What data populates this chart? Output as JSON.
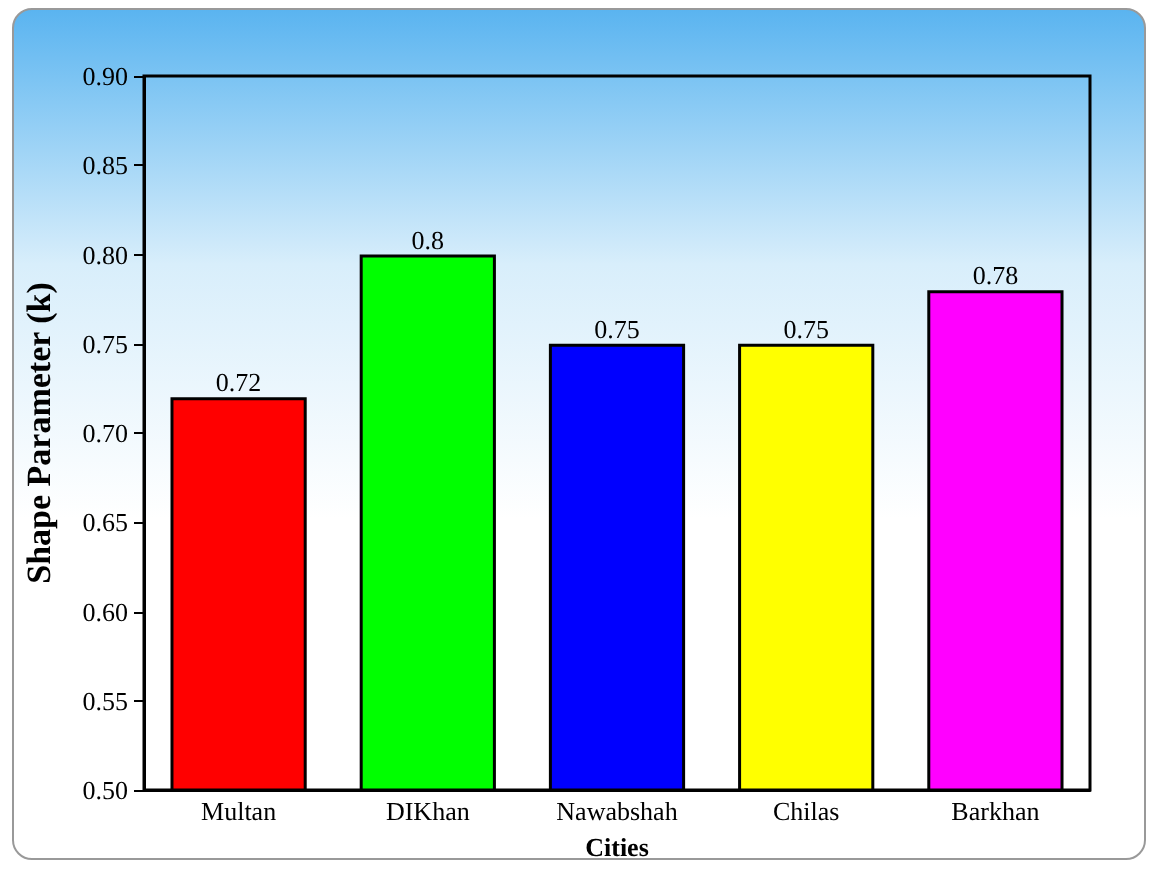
{
  "chart_data": {
    "type": "bar",
    "xlabel": "Cities",
    "ylabel": "Shape Parameter (k)",
    "categories": [
      "Multan",
      "DIKhan",
      "Nawabshah",
      "Chilas",
      "Barkhan"
    ],
    "values": [
      0.72,
      0.8,
      0.75,
      0.75,
      0.78
    ],
    "colors": [
      "#ff0000",
      "#00ff00",
      "#0000ff",
      "#ffff00",
      "#ff00ff"
    ],
    "ylim": [
      0.5,
      0.9
    ],
    "yticks": [
      {
        "value": 0.5,
        "label": "0.50"
      },
      {
        "value": 0.55,
        "label": "0.55"
      },
      {
        "value": 0.6,
        "label": "0.60"
      },
      {
        "value": 0.65,
        "label": "0.65"
      },
      {
        "value": 0.7,
        "label": "0.70"
      },
      {
        "value": 0.75,
        "label": "0.75"
      },
      {
        "value": 0.8,
        "label": "0.80"
      },
      {
        "value": 0.85,
        "label": "0.85"
      },
      {
        "value": 0.9,
        "label": "0.90"
      }
    ],
    "data_labels": true,
    "grid": false
  }
}
